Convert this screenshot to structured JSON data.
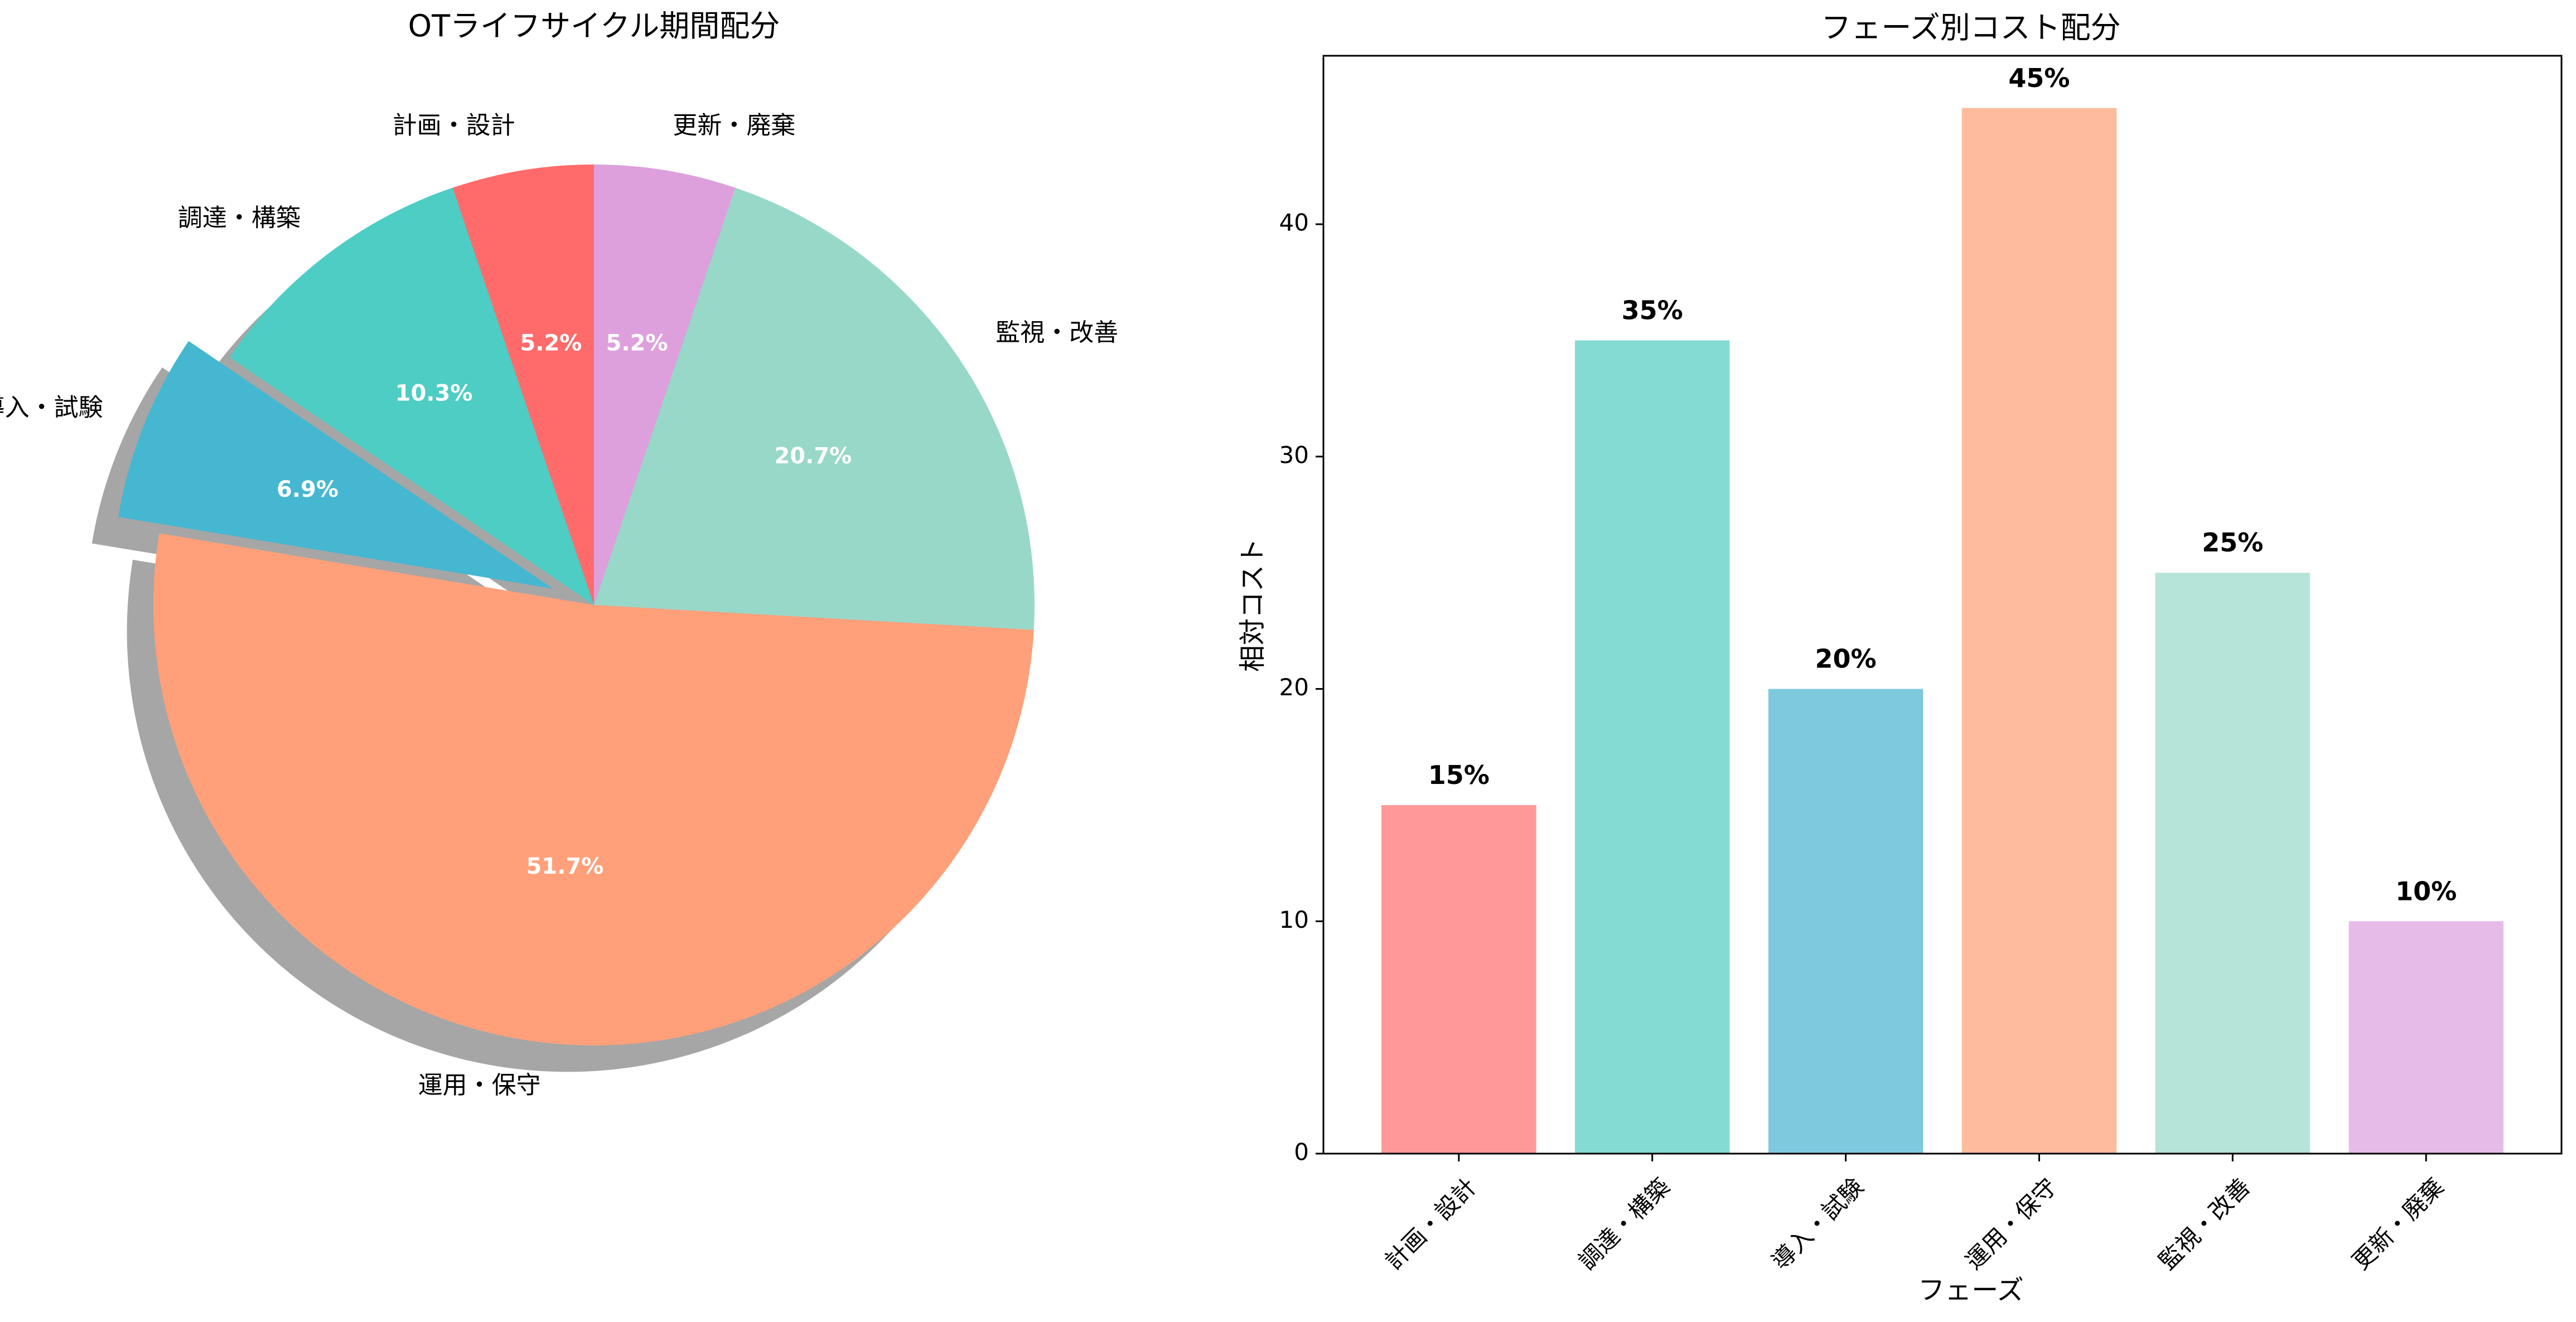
{
  "chart_data": [
    {
      "type": "pie",
      "title": "OTライフサイクル期間配分",
      "categories": [
        "計画・設計",
        "調達・構築",
        "導入・試験",
        "運用・保守",
        "監視・改善",
        "更新・廃棄"
      ],
      "values": [
        5.2,
        10.3,
        6.9,
        51.7,
        20.7,
        5.2
      ],
      "value_labels": [
        "5.2%",
        "10.3%",
        "6.9%",
        "51.7%",
        "20.7%",
        "5.2%"
      ],
      "colors": [
        "#FF6B6B",
        "#4ECDC4",
        "#45B7D1",
        "#FFA07A",
        "#98D8C8",
        "#DDA0DD"
      ],
      "start_angle_deg": 90,
      "direction": "counterclockwise",
      "exploded": [
        "導入・試験"
      ],
      "shadow": true,
      "label_text_color": "#ffffff"
    },
    {
      "type": "bar",
      "title": "フェーズ別コスト配分",
      "xlabel": "フェーズ",
      "ylabel": "相対コスト",
      "categories": [
        "計画・設計",
        "調達・構築",
        "導入・試験",
        "運用・保守",
        "監視・改善",
        "更新・廃棄"
      ],
      "values": [
        15,
        35,
        20,
        45,
        25,
        10
      ],
      "value_labels": [
        "15%",
        "35%",
        "20%",
        "45%",
        "25%",
        "10%"
      ],
      "colors": [
        "#FF9999",
        "#84DBD4",
        "#7FC9DF",
        "#FFBB9E",
        "#B6E4D9",
        "#E7BBE7"
      ],
      "yticks": [
        0,
        10,
        20,
        30,
        40
      ],
      "ylim": [
        0,
        47.25
      ],
      "grid": false,
      "xtick_rotation_deg": 45
    }
  ]
}
